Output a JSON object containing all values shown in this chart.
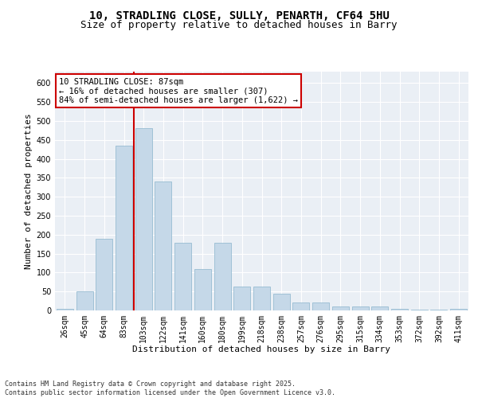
{
  "title_line1": "10, STRADLING CLOSE, SULLY, PENARTH, CF64 5HU",
  "title_line2": "Size of property relative to detached houses in Barry",
  "xlabel": "Distribution of detached houses by size in Barry",
  "ylabel": "Number of detached properties",
  "categories": [
    "26sqm",
    "45sqm",
    "64sqm",
    "83sqm",
    "103sqm",
    "122sqm",
    "141sqm",
    "160sqm",
    "180sqm",
    "199sqm",
    "218sqm",
    "238sqm",
    "257sqm",
    "276sqm",
    "295sqm",
    "315sqm",
    "334sqm",
    "353sqm",
    "372sqm",
    "392sqm",
    "411sqm"
  ],
  "values": [
    5,
    50,
    190,
    435,
    480,
    340,
    178,
    110,
    178,
    62,
    62,
    45,
    22,
    22,
    10,
    10,
    10,
    5,
    3,
    3,
    5
  ],
  "bar_color": "#c5d8e8",
  "bar_edge_color": "#8ab4cc",
  "vline_x": 3.5,
  "vline_color": "#cc0000",
  "ylim": [
    0,
    630
  ],
  "yticks": [
    0,
    50,
    100,
    150,
    200,
    250,
    300,
    350,
    400,
    450,
    500,
    550,
    600
  ],
  "annotation_text": "10 STRADLING CLOSE: 87sqm\n← 16% of detached houses are smaller (307)\n84% of semi-detached houses are larger (1,622) →",
  "annotation_box_color": "#ffffff",
  "annotation_box_edge": "#cc0000",
  "bg_color": "#eaeff5",
  "grid_color": "#ffffff",
  "footer_text": "Contains HM Land Registry data © Crown copyright and database right 2025.\nContains public sector information licensed under the Open Government Licence v3.0.",
  "title_fontsize": 10,
  "subtitle_fontsize": 9,
  "axis_label_fontsize": 8,
  "tick_fontsize": 7,
  "annotation_fontsize": 7.5,
  "footer_fontsize": 6
}
